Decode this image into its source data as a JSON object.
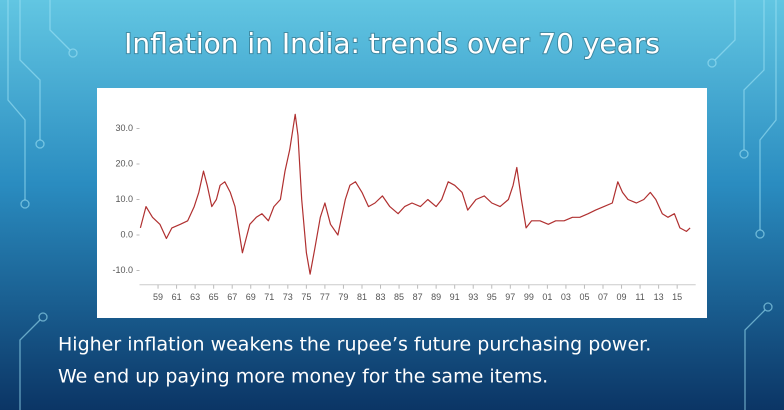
{
  "chart_data": {
    "type": "line",
    "title": "Inflation in India: trends over 70 years",
    "x": [
      1957.1,
      1957.7,
      1958.4,
      1959.2,
      1959.9,
      1960.5,
      1961.4,
      1962.2,
      1962.9,
      1963.4,
      1963.9,
      1964.3,
      1964.8,
      1965.3,
      1965.7,
      1966.2,
      1966.8,
      1967.3,
      1967.8,
      1968.1,
      1968.5,
      1968.9,
      1969.6,
      1970.2,
      1970.9,
      1971.5,
      1972.2,
      1972.7,
      1973.2,
      1973.8,
      1974.1,
      1974.5,
      1975.0,
      1975.4,
      1975.9,
      1976.5,
      1977.0,
      1977.6,
      1978.4,
      1979.2,
      1979.7,
      1980.3,
      1981.0,
      1981.7,
      1982.4,
      1983.2,
      1984.0,
      1984.9,
      1985.6,
      1986.4,
      1987.3,
      1988.1,
      1989.0,
      1989.6,
      1990.3,
      1991.0,
      1991.8,
      1992.4,
      1993.3,
      1994.2,
      1995.0,
      1995.9,
      1996.8,
      1997.3,
      1997.7,
      1998.2,
      1998.7,
      1999.3,
      2000.2,
      2001.1,
      2001.9,
      2002.8,
      2003.7,
      2004.5,
      2005.4,
      2006.2,
      2007.1,
      2008.0,
      2008.6,
      2009.1,
      2009.7,
      2010.6,
      2011.4,
      2012.1,
      2012.7,
      2013.4,
      2014.0,
      2014.7,
      2015.3,
      2016.0,
      2016.4
    ],
    "values": [
      2,
      8,
      5,
      3,
      -1,
      2,
      3,
      4,
      8,
      12,
      18,
      14,
      8,
      10,
      14,
      15,
      12,
      8,
      0,
      -5,
      -1,
      3,
      5,
      6,
      4,
      8,
      10,
      18,
      24,
      34,
      28,
      10,
      -5,
      -11,
      -4,
      5,
      9,
      3,
      0,
      10,
      14,
      15,
      12,
      8,
      9,
      11,
      8,
      6,
      8,
      9,
      8,
      10,
      8,
      10,
      15,
      14,
      12,
      7,
      10,
      11,
      9,
      8,
      10,
      14,
      19,
      10,
      2,
      4,
      4,
      3,
      4,
      4,
      5,
      5,
      6,
      7,
      8,
      9,
      15,
      12,
      10,
      9,
      10,
      12,
      10,
      6,
      5,
      6,
      2,
      1,
      2
    ],
    "color": "#b03030",
    "xlim": [
      1957,
      2017
    ],
    "xticks": [
      {
        "value": 1959,
        "label": "59"
      },
      {
        "value": 1961,
        "label": "61"
      },
      {
        "value": 1963,
        "label": "63"
      },
      {
        "value": 1965,
        "label": "65"
      },
      {
        "value": 1967,
        "label": "67"
      },
      {
        "value": 1969,
        "label": "69"
      },
      {
        "value": 1971,
        "label": "71"
      },
      {
        "value": 1973,
        "label": "73"
      },
      {
        "value": 1975,
        "label": "75"
      },
      {
        "value": 1977,
        "label": "77"
      },
      {
        "value": 1979,
        "label": "79"
      },
      {
        "value": 1981,
        "label": "81"
      },
      {
        "value": 1983,
        "label": "83"
      },
      {
        "value": 1985,
        "label": "85"
      },
      {
        "value": 1987,
        "label": "87"
      },
      {
        "value": 1989,
        "label": "89"
      },
      {
        "value": 1991,
        "label": "91"
      },
      {
        "value": 1993,
        "label": "93"
      },
      {
        "value": 1995,
        "label": "95"
      },
      {
        "value": 1997,
        "label": "97"
      },
      {
        "value": 1999,
        "label": "99"
      },
      {
        "value": 2001,
        "label": "01"
      },
      {
        "value": 2003,
        "label": "03"
      },
      {
        "value": 2005,
        "label": "05"
      },
      {
        "value": 2007,
        "label": "07"
      },
      {
        "value": 2009,
        "label": "09"
      },
      {
        "value": 2011,
        "label": "11"
      },
      {
        "value": 2013,
        "label": "13"
      },
      {
        "value": 2015,
        "label": "15"
      }
    ],
    "ylim": [
      -14,
      36
    ],
    "yticks": [
      {
        "value": -10,
        "label": "-10.0"
      },
      {
        "value": 0,
        "label": "0.0"
      },
      {
        "value": 10,
        "label": "10.0"
      },
      {
        "value": 20,
        "label": "20.0"
      },
      {
        "value": 30,
        "label": "30.0"
      }
    ],
    "grid": false
  },
  "caption": [
    "Higher inflation weakens the rupee’s future purchasing power.",
    "We end up paying more money for the same items."
  ]
}
